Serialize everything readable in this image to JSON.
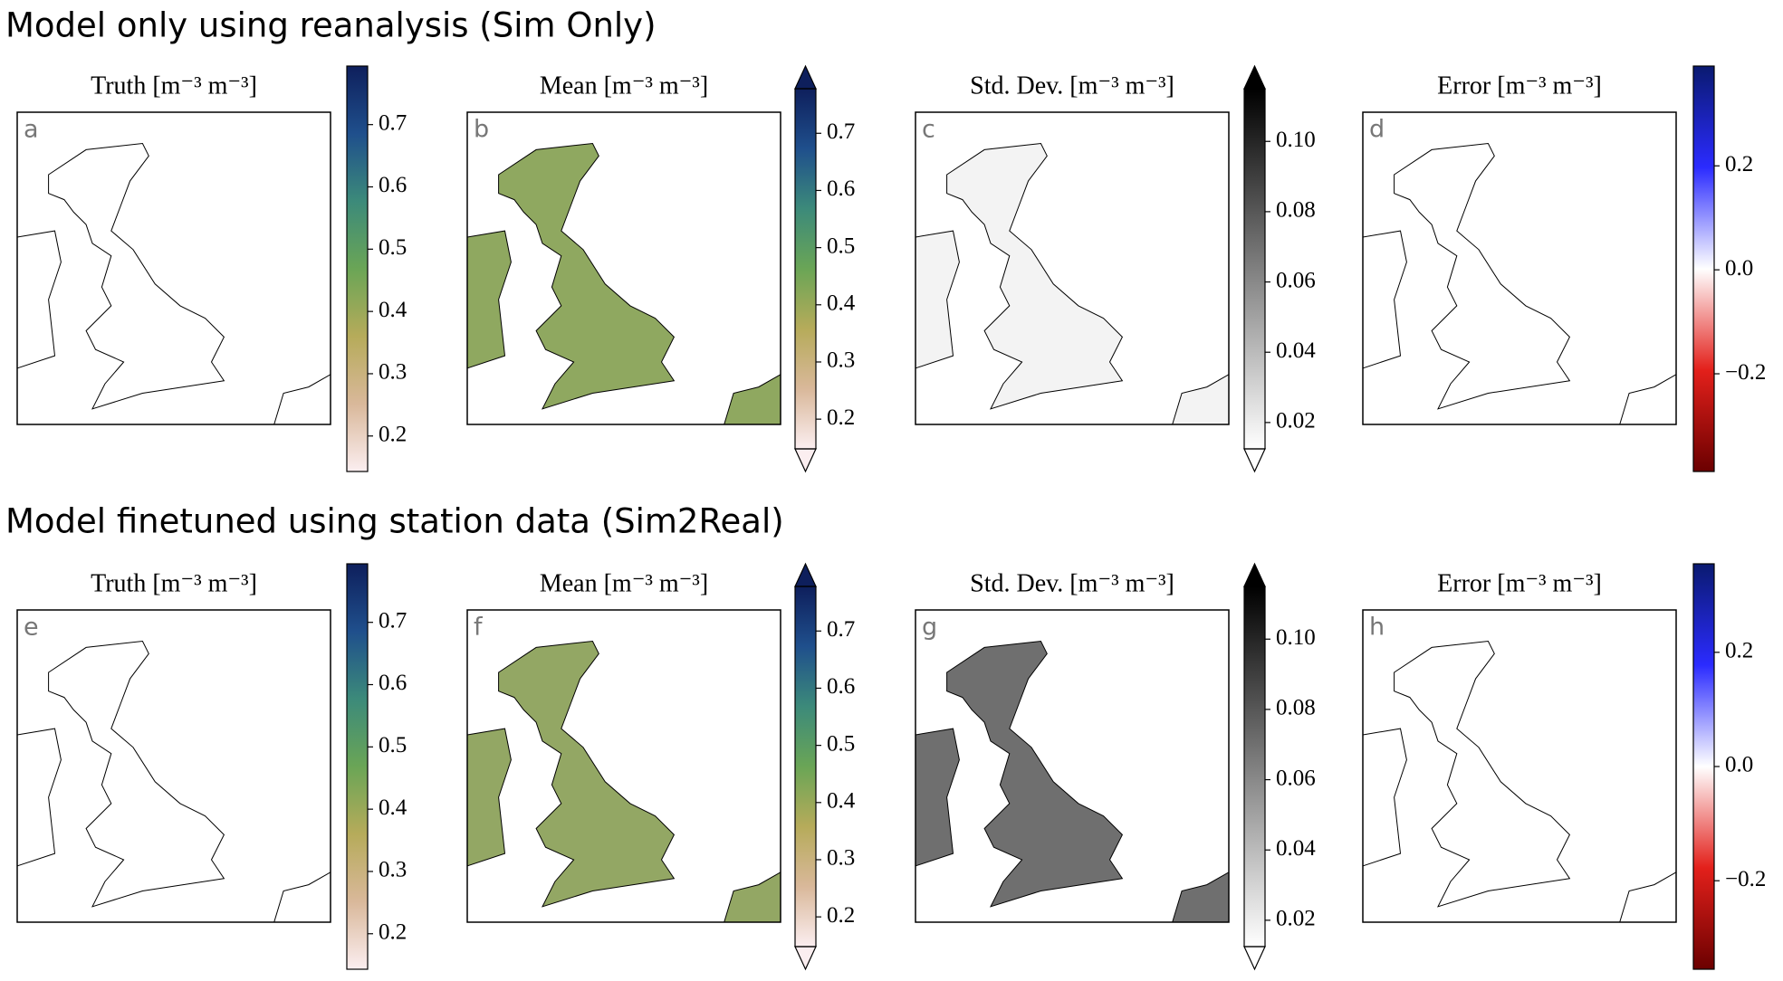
{
  "figure_titles": [
    "Model only using reanalysis (Sim Only)",
    "Model finetuned using station data (Sim2Real)"
  ],
  "chart_data": [
    {
      "type": "map",
      "label": "a",
      "title": "Truth [m⁻³ m⁻³]",
      "map_fill": "#ffffff",
      "colorbar": {
        "lim": [
          0.143,
          0.794
        ],
        "ticks": [
          0.2,
          0.3,
          0.4,
          0.5,
          0.6,
          0.7
        ],
        "extend": "neither",
        "colors": [
          "#fbeef0",
          "#d9b89a",
          "#b6ab5a",
          "#6aa556",
          "#3c8a7a",
          "#1f4f8c",
          "#0e1f5c"
        ]
      }
    },
    {
      "type": "map",
      "label": "b",
      "title": "Mean [m⁻³ m⁻³]",
      "map_fill": "#8fa860",
      "colorbar": {
        "lim": [
          0.148,
          0.778
        ],
        "ticks": [
          0.2,
          0.3,
          0.4,
          0.5,
          0.6,
          0.7
        ],
        "extend": "both",
        "colors": [
          "#fbeef0",
          "#d9b89a",
          "#b6ab5a",
          "#6aa556",
          "#3c8a7a",
          "#1f4f8c",
          "#0e1f5c"
        ]
      }
    },
    {
      "type": "map",
      "label": "c",
      "title": "Std. Dev. [m⁻³ m⁻³]",
      "map_fill": "#f3f3f3",
      "colorbar": {
        "lim": [
          0.0125,
          0.115
        ],
        "ticks": [
          0.02,
          0.04,
          0.06,
          0.08,
          {
            "value": 0.1,
            "label": "0.10"
          }
        ],
        "extend": "both",
        "colors": [
          "#ffffff",
          "#000000"
        ]
      }
    },
    {
      "type": "map",
      "label": "d",
      "title": "Error [m⁻³ m⁻³]",
      "map_fill": "#ffffff",
      "colorbar": {
        "lim": [
          -0.388,
          0.392
        ],
        "ticks": [
          {
            "value": -0.2,
            "label": "−0.2"
          },
          {
            "value": 0,
            "label": "0.0"
          },
          0.2
        ],
        "extend": "neither",
        "colors": [
          "#6b0000",
          "#e3201b",
          "#ffffff",
          "#2b2bff",
          "#0a1a70"
        ]
      }
    },
    {
      "type": "map",
      "label": "e",
      "title": "Truth [m⁻³ m⁻³]",
      "map_fill": "#ffffff",
      "colorbar": {
        "lim": [
          0.143,
          0.794
        ],
        "ticks": [
          0.2,
          0.3,
          0.4,
          0.5,
          0.6,
          0.7
        ],
        "extend": "neither",
        "colors": [
          "#fbeef0",
          "#d9b89a",
          "#b6ab5a",
          "#6aa556",
          "#3c8a7a",
          "#1f4f8c",
          "#0e1f5c"
        ]
      }
    },
    {
      "type": "map",
      "label": "f",
      "title": "Mean [m⁻³ m⁻³]",
      "map_fill": "#93a764",
      "colorbar": {
        "lim": [
          0.148,
          0.778
        ],
        "ticks": [
          0.2,
          0.3,
          0.4,
          0.5,
          0.6,
          0.7
        ],
        "extend": "both",
        "colors": [
          "#fbeef0",
          "#d9b89a",
          "#b6ab5a",
          "#6aa556",
          "#3c8a7a",
          "#1f4f8c",
          "#0e1f5c"
        ]
      }
    },
    {
      "type": "map",
      "label": "g",
      "title": "Std. Dev. [m⁻³ m⁻³]",
      "map_fill": "#6f6f6f",
      "colorbar": {
        "lim": [
          0.0125,
          0.115
        ],
        "ticks": [
          0.02,
          0.04,
          0.06,
          0.08,
          {
            "value": 0.1,
            "label": "0.10"
          }
        ],
        "extend": "both",
        "colors": [
          "#ffffff",
          "#000000"
        ]
      }
    },
    {
      "type": "map",
      "label": "h",
      "title": "Error [m⁻³ m⁻³]",
      "map_fill": "#ffffff",
      "colorbar": {
        "lim": [
          -0.355,
          0.355
        ],
        "ticks": [
          {
            "value": -0.2,
            "label": "−0.2"
          },
          {
            "value": 0,
            "label": "0.0"
          },
          0.2
        ],
        "extend": "neither",
        "colors": [
          "#6b0000",
          "#e3201b",
          "#ffffff",
          "#2b2bff",
          "#0a1a70"
        ]
      }
    }
  ]
}
